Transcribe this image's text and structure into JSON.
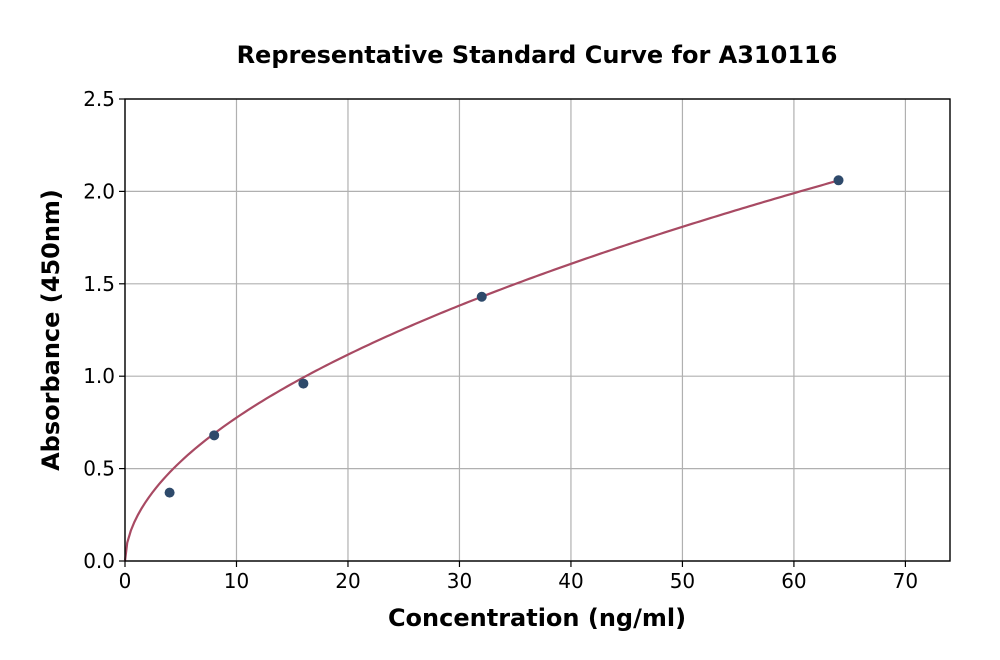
{
  "chart_data": {
    "type": "scatter",
    "title": "Representative Standard Curve for A310116",
    "xlabel": "Concentration (ng/ml)",
    "ylabel": "Absorbance (450nm)",
    "xlim": [
      0,
      74
    ],
    "ylim": [
      0,
      2.5
    ],
    "xticks": [
      0,
      10,
      20,
      30,
      40,
      50,
      60,
      70
    ],
    "yticks": [
      0.0,
      0.5,
      1.0,
      1.5,
      2.0,
      2.5
    ],
    "xtick_labels": [
      "0",
      "10",
      "20",
      "30",
      "40",
      "50",
      "60",
      "70"
    ],
    "ytick_labels": [
      "0.0",
      "0.5",
      "1.0",
      "1.5",
      "2.0",
      "2.5"
    ],
    "grid": true,
    "points": {
      "x": [
        4,
        8,
        16,
        32,
        64
      ],
      "y": [
        0.37,
        0.68,
        0.96,
        1.43,
        2.06
      ],
      "color": "#2e4a6b"
    },
    "fit_curve": {
      "kind": "power",
      "a": 0.231,
      "b": 0.526,
      "x_range": [
        0.2,
        64
      ],
      "color": "#a84a63"
    }
  }
}
